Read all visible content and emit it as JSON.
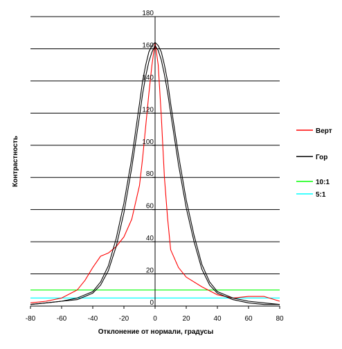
{
  "chart_data": {
    "type": "line",
    "title": "",
    "xlabel": "Отклонение от нормали, градусы",
    "ylabel": "Контрастность",
    "xlim": [
      -80,
      80
    ],
    "ylim": [
      0,
      180
    ],
    "xticks": [
      -80,
      -60,
      -40,
      -20,
      0,
      20,
      40,
      60,
      80
    ],
    "yticks": [
      0,
      20,
      40,
      60,
      80,
      100,
      120,
      140,
      160,
      180
    ],
    "grid": "horizontal",
    "legend_position": "right",
    "series": [
      {
        "name": "Верт",
        "color": "#ff0000",
        "x": [
          -80,
          -70,
          -60,
          -50,
          -45,
          -40,
          -35,
          -30,
          -25,
          -20,
          -15,
          -10,
          -8,
          -6,
          -4,
          -2,
          0,
          2,
          4,
          6,
          8,
          10,
          15,
          20,
          30,
          40,
          50,
          60,
          70,
          80
        ],
        "y": [
          2,
          3,
          5,
          10,
          16,
          24,
          31,
          33,
          37,
          43,
          54,
          75,
          92,
          112,
          132,
          150,
          164,
          150,
          118,
          80,
          55,
          35,
          24,
          18,
          12,
          7,
          5,
          6,
          6,
          3
        ]
      },
      {
        "name": "Гор",
        "color": "#000000",
        "x": [
          -80,
          -70,
          -60,
          -50,
          -40,
          -35,
          -30,
          -25,
          -20,
          -15,
          -10,
          -8,
          -6,
          -4,
          -2,
          0,
          2,
          4,
          6,
          8,
          10,
          15,
          20,
          25,
          30,
          35,
          40,
          50,
          60,
          70,
          80
        ],
        "y": [
          1,
          2,
          3,
          5,
          9,
          15,
          25,
          42,
          64,
          92,
          126,
          140,
          150,
          158,
          162,
          164,
          162,
          158,
          150,
          140,
          126,
          94,
          66,
          44,
          26,
          15,
          9,
          5,
          3,
          2,
          1
        ]
      },
      {
        "name": "Гор",
        "color": "#000000",
        "x": [
          -80,
          -70,
          -60,
          -50,
          -40,
          -35,
          -30,
          -25,
          -20,
          -15,
          -10,
          -8,
          -6,
          -4,
          -2,
          0,
          2,
          4,
          6,
          8,
          10,
          15,
          20,
          25,
          30,
          35,
          40,
          50,
          60,
          70,
          80
        ],
        "y": [
          1,
          2,
          3,
          4,
          8,
          13,
          22,
          37,
          58,
          86,
          118,
          132,
          143,
          152,
          158,
          162,
          159,
          153,
          144,
          133,
          120,
          88,
          61,
          40,
          23,
          13,
          8,
          4,
          2,
          1,
          1
        ]
      },
      {
        "name": "10:1",
        "color": "#00ff00",
        "x": [
          -80,
          80
        ],
        "y": [
          10,
          10
        ]
      },
      {
        "name": "5:1",
        "color": "#00ffff",
        "x": [
          -80,
          80
        ],
        "y": [
          5,
          5
        ]
      }
    ],
    "legend": [
      "Верт",
      "Гор",
      "10:1",
      "5:1"
    ]
  }
}
